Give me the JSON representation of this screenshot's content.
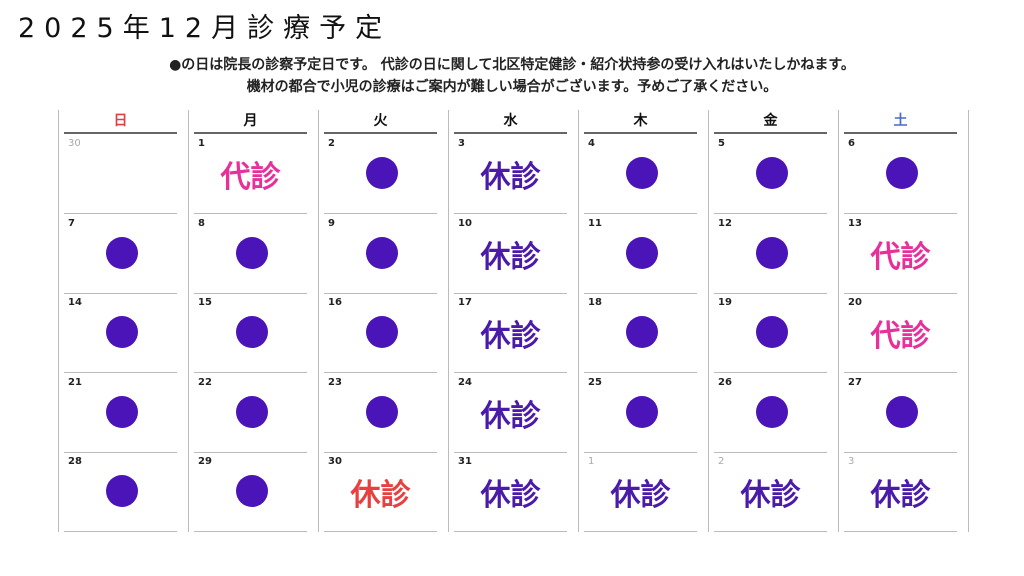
{
  "title": "2025年12月診療予定",
  "notes": [
    "●の日は院長の診察予定日です。 代診の日に関して北区特定健診・紹介状持参の受け入れはいたしかねます。",
    "機材の都合で小児の診療はご案内が難しい場合がございます。予めご了承ください。"
  ],
  "colors": {
    "dot": "#4a14b8",
    "daishin": "#e8309a",
    "kyushin": "#4a1aa8",
    "kyushin_red": "#e84040",
    "sunday": "#e04040",
    "saturday": "#4a6ad0"
  },
  "labels": {
    "daishin": "代診",
    "kyushin": "休診"
  },
  "weekdays": [
    "日",
    "月",
    "火",
    "水",
    "木",
    "金",
    "土"
  ],
  "weeks": [
    [
      {
        "day": "30",
        "muted": true,
        "mark": ""
      },
      {
        "day": "1",
        "mark": "daishin"
      },
      {
        "day": "2",
        "mark": "dot"
      },
      {
        "day": "3",
        "mark": "kyushin"
      },
      {
        "day": "4",
        "mark": "dot"
      },
      {
        "day": "5",
        "mark": "dot"
      },
      {
        "day": "6",
        "mark": "dot"
      }
    ],
    [
      {
        "day": "7",
        "mark": "dot"
      },
      {
        "day": "8",
        "mark": "dot"
      },
      {
        "day": "9",
        "mark": "dot"
      },
      {
        "day": "10",
        "mark": "kyushin"
      },
      {
        "day": "11",
        "mark": "dot"
      },
      {
        "day": "12",
        "mark": "dot"
      },
      {
        "day": "13",
        "mark": "daishin"
      }
    ],
    [
      {
        "day": "14",
        "mark": "dot"
      },
      {
        "day": "15",
        "mark": "dot"
      },
      {
        "day": "16",
        "mark": "dot"
      },
      {
        "day": "17",
        "mark": "kyushin"
      },
      {
        "day": "18",
        "mark": "dot"
      },
      {
        "day": "19",
        "mark": "dot"
      },
      {
        "day": "20",
        "mark": "daishin"
      }
    ],
    [
      {
        "day": "21",
        "mark": "dot"
      },
      {
        "day": "22",
        "mark": "dot"
      },
      {
        "day": "23",
        "mark": "dot"
      },
      {
        "day": "24",
        "mark": "kyushin"
      },
      {
        "day": "25",
        "mark": "dot"
      },
      {
        "day": "26",
        "mark": "dot"
      },
      {
        "day": "27",
        "mark": "dot"
      }
    ],
    [
      {
        "day": "28",
        "mark": "dot"
      },
      {
        "day": "29",
        "mark": "dot"
      },
      {
        "day": "30",
        "mark": "kyushin_red"
      },
      {
        "day": "31",
        "mark": "kyushin"
      },
      {
        "day": "1",
        "muted": true,
        "mark": "kyushin"
      },
      {
        "day": "2",
        "muted": true,
        "mark": "kyushin"
      },
      {
        "day": "3",
        "muted": true,
        "mark": "kyushin"
      }
    ]
  ]
}
